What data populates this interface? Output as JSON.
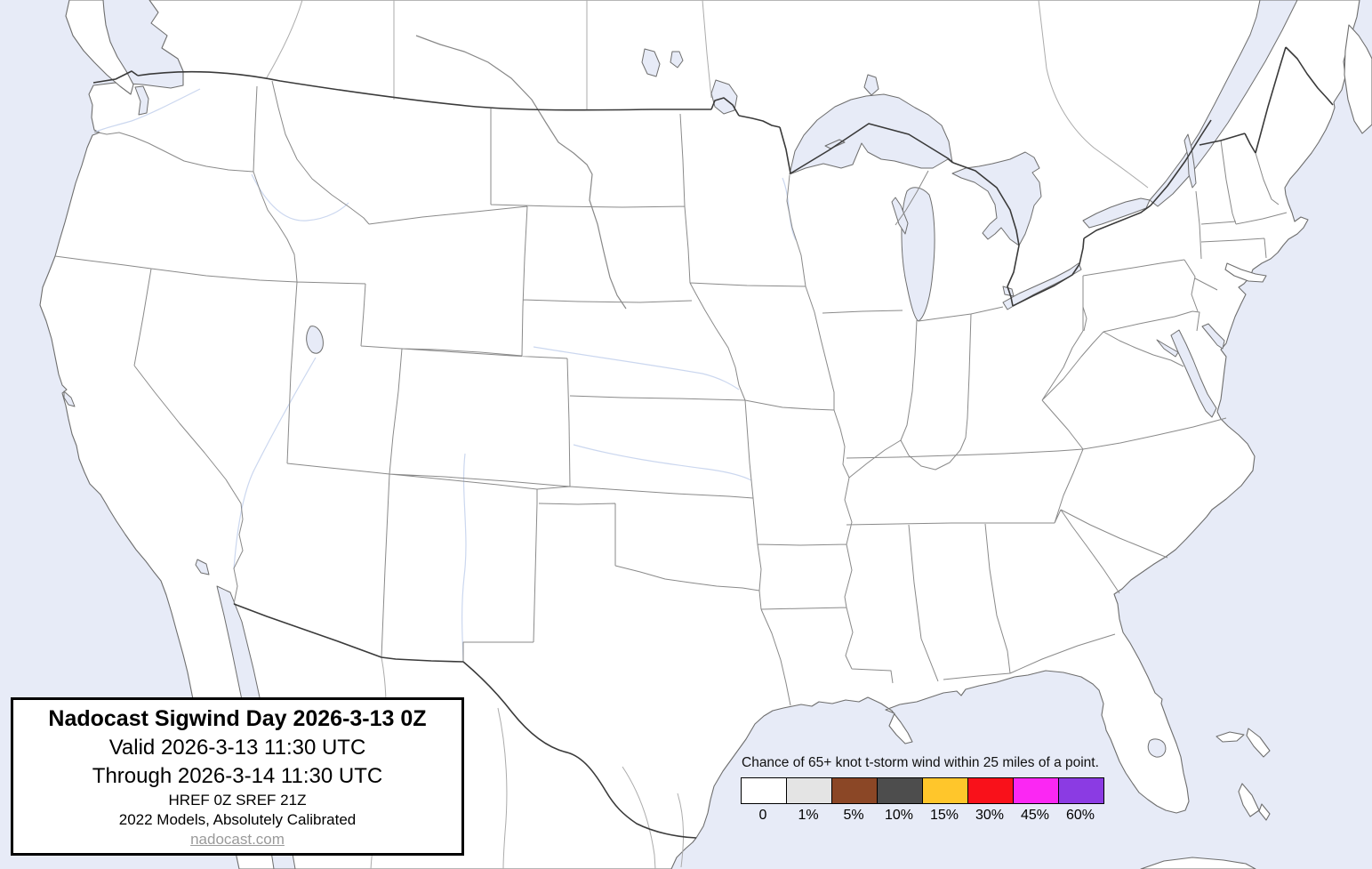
{
  "title_box": {
    "title": "Nadocast Sigwind Day 2026-3-13 0Z",
    "valid_line": "Valid 2026-3-13 11:30 UTC",
    "through_line": "Through 2026-3-14 11:30 UTC",
    "models_line": "HREF 0Z SREF 21Z",
    "calibration_line": "2022 Models, Absolutely Calibrated",
    "site_link": "nadocast.com"
  },
  "legend": {
    "caption": "Chance of 65+ knot t-storm wind within 25 miles of a point.",
    "items": [
      {
        "label": "0",
        "color": "#FFFFFF"
      },
      {
        "label": "1%",
        "color": "#E4E4E4"
      },
      {
        "label": "5%",
        "color": "#8B4726"
      },
      {
        "label": "10%",
        "color": "#4D4D4D"
      },
      {
        "label": "15%",
        "color": "#FFC62B"
      },
      {
        "label": "30%",
        "color": "#F9111A"
      },
      {
        "label": "45%",
        "color": "#FB27F3"
      },
      {
        "label": "60%",
        "color": "#8B3BE3"
      }
    ]
  },
  "map": {
    "colors": {
      "water": "#E7EBF7",
      "land": "#FFFFFF",
      "coastline": "#6E6E6E",
      "state_border": "#8A8A8A",
      "province_border": "#ABABAB",
      "national_border": "#3A3A3A",
      "river": "#CBD7EF",
      "major_river": "#888888"
    }
  }
}
